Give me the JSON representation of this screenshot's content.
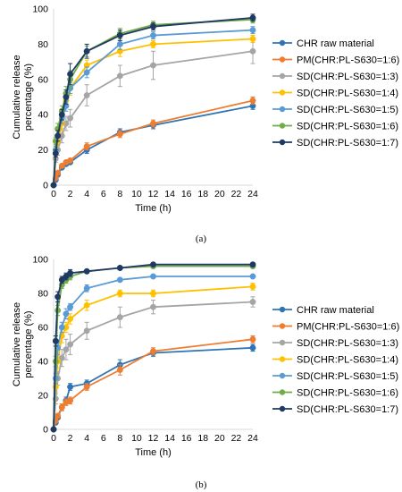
{
  "chart_data": [
    {
      "type": "line",
      "panel_label": "(a)",
      "xlabel": "Time (h)",
      "ylabel_lines": [
        "Cumulative release",
        "percentage  (%)"
      ],
      "xlim": [
        0,
        24
      ],
      "ylim": [
        0,
        100
      ],
      "x_ticks": [
        0,
        2,
        4,
        6,
        8,
        10,
        12,
        14,
        16,
        18,
        20,
        22,
        24
      ],
      "y_ticks": [
        0,
        20,
        40,
        60,
        80,
        100
      ],
      "grid": false,
      "legend_position": "right",
      "x": [
        0,
        0.25,
        0.5,
        1,
        1.5,
        2,
        4,
        8,
        12,
        24
      ],
      "series": [
        {
          "name": "CHR raw material",
          "color": "#2e75b6",
          "values": [
            0,
            3,
            6,
            10,
            12,
            13,
            20,
            30,
            34,
            45
          ],
          "errors": [
            0,
            1,
            1,
            1,
            1,
            1,
            2,
            2,
            2,
            2
          ]
        },
        {
          "name": "PM(CHR:PL-S630=1:6)",
          "color": "#ed7d31",
          "values": [
            0,
            4,
            7,
            11,
            13,
            14,
            22,
            29,
            35,
            48
          ],
          "errors": [
            0,
            1,
            1,
            1,
            1,
            1,
            2,
            2,
            2,
            2
          ]
        },
        {
          "name": "SD(CHR:PL-S630=1:3)",
          "color": "#a5a5a5",
          "values": [
            0,
            15,
            20,
            28,
            35,
            38,
            51,
            62,
            68,
            76
          ],
          "errors": [
            0,
            2,
            3,
            4,
            4,
            5,
            6,
            6,
            8,
            7
          ]
        },
        {
          "name": "SD(CHR:PL-S630=1:4)",
          "color": "#ffc000",
          "values": [
            0,
            18,
            25,
            35,
            48,
            55,
            68,
            76,
            80,
            83
          ],
          "errors": [
            0,
            2,
            3,
            4,
            4,
            4,
            3,
            3,
            2,
            2
          ]
        },
        {
          "name": "SD(CHR:PL-S630=1:5)",
          "color": "#5b9bd5",
          "values": [
            0,
            20,
            28,
            38,
            45,
            55,
            64,
            80,
            85,
            88
          ],
          "errors": [
            0,
            2,
            3,
            3,
            3,
            3,
            3,
            3,
            2,
            2
          ]
        },
        {
          "name": "SD(CHR:PL-S630=1:6)",
          "color": "#70ad47",
          "values": [
            0,
            25,
            32,
            42,
            52,
            60,
            76,
            86,
            91,
            94
          ],
          "errors": [
            0,
            2,
            3,
            3,
            4,
            5,
            3,
            3,
            2,
            2
          ]
        },
        {
          "name": "SD(CHR:PL-S630=1:7)",
          "color": "#203864",
          "values": [
            0,
            18,
            28,
            40,
            50,
            63,
            76,
            85,
            90,
            95
          ],
          "errors": [
            0,
            2,
            3,
            3,
            4,
            6,
            4,
            3,
            2,
            2
          ]
        }
      ]
    },
    {
      "type": "line",
      "panel_label": "(b)",
      "xlabel": "Time (h)",
      "ylabel_lines": [
        "Cumulative release",
        "percentage  (%)"
      ],
      "xlim": [
        0,
        24
      ],
      "ylim": [
        0,
        100
      ],
      "x_ticks": [
        0,
        2,
        4,
        6,
        8,
        10,
        12,
        14,
        16,
        18,
        20,
        22,
        24
      ],
      "y_ticks": [
        0,
        20,
        40,
        60,
        80,
        100
      ],
      "grid": false,
      "legend_position": "right",
      "x": [
        0,
        0.25,
        0.5,
        1,
        1.5,
        2,
        4,
        8,
        12,
        24
      ],
      "series": [
        {
          "name": "CHR raw material",
          "color": "#2e75b6",
          "values": [
            0,
            4,
            7,
            13,
            17,
            25,
            27,
            38,
            45,
            48
          ],
          "errors": [
            0,
            1,
            1,
            2,
            2,
            2,
            2,
            3,
            2,
            2
          ]
        },
        {
          "name": "PM(CHR:PL-S630=1:6)",
          "color": "#ed7d31",
          "values": [
            0,
            5,
            8,
            13,
            16,
            17,
            25,
            35,
            46,
            53
          ],
          "errors": [
            0,
            1,
            1,
            2,
            2,
            2,
            2,
            3,
            2,
            2
          ]
        },
        {
          "name": "SD(CHR:PL-S630=1:3)",
          "color": "#a5a5a5",
          "values": [
            0,
            18,
            30,
            42,
            47,
            50,
            58,
            66,
            72,
            75
          ],
          "errors": [
            0,
            3,
            4,
            5,
            6,
            6,
            5,
            6,
            4,
            3
          ]
        },
        {
          "name": "SD(CHR:PL-S630=1:4)",
          "color": "#ffc000",
          "values": [
            0,
            25,
            40,
            55,
            60,
            65,
            73,
            80,
            80,
            84
          ],
          "errors": [
            0,
            3,
            4,
            4,
            3,
            3,
            3,
            2,
            2,
            2
          ]
        },
        {
          "name": "SD(CHR:PL-S630=1:5)",
          "color": "#5b9bd5",
          "values": [
            0,
            30,
            48,
            60,
            68,
            72,
            83,
            88,
            90,
            90
          ],
          "errors": [
            0,
            3,
            4,
            3,
            3,
            2,
            2,
            1,
            1,
            1
          ]
        },
        {
          "name": "SD(CHR:PL-S630=1:6)",
          "color": "#70ad47",
          "values": [
            0,
            40,
            70,
            85,
            88,
            90,
            93,
            95,
            96,
            96
          ],
          "errors": [
            0,
            3,
            3,
            2,
            2,
            2,
            1,
            1,
            1,
            1
          ]
        },
        {
          "name": "SD(CHR:PL-S630=1:7)",
          "color": "#203864",
          "values": [
            0,
            52,
            78,
            88,
            90,
            92,
            93,
            95,
            97,
            97
          ],
          "errors": [
            0,
            3,
            3,
            2,
            2,
            2,
            1,
            1,
            1,
            1
          ]
        }
      ]
    }
  ]
}
